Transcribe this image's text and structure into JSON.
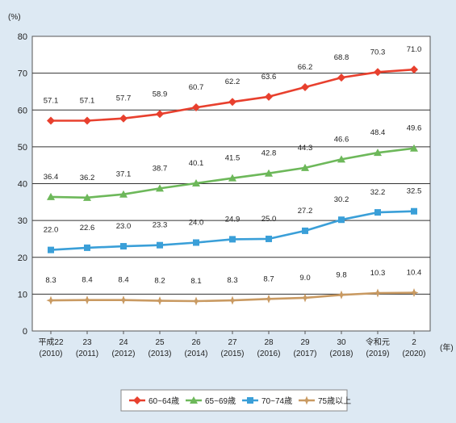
{
  "chart_data": {
    "type": "line",
    "y_unit_label": "(%)",
    "x_unit_label": "(年)",
    "ylim": [
      0,
      80
    ],
    "y_ticks": [
      0,
      10,
      20,
      30,
      40,
      50,
      60,
      70,
      80
    ],
    "grid": "horizontal",
    "legend_position": "bottom",
    "categories": [
      {
        "top": "平成22",
        "bottom": "(2010)"
      },
      {
        "top": "23",
        "bottom": "(2011)"
      },
      {
        "top": "24",
        "bottom": "(2012)"
      },
      {
        "top": "25",
        "bottom": "(2013)"
      },
      {
        "top": "26",
        "bottom": "(2014)"
      },
      {
        "top": "27",
        "bottom": "(2015)"
      },
      {
        "top": "28",
        "bottom": "(2016)"
      },
      {
        "top": "29",
        "bottom": "(2017)"
      },
      {
        "top": "30",
        "bottom": "(2018)"
      },
      {
        "top": "令和元",
        "bottom": "(2019)"
      },
      {
        "top": "2",
        "bottom": "(2020)"
      }
    ],
    "series": [
      {
        "name": "60~64歳",
        "color": "#e8402e",
        "marker": "diamond",
        "values": [
          57.1,
          57.1,
          57.7,
          58.9,
          60.7,
          62.2,
          63.6,
          66.2,
          68.8,
          70.3,
          71.0
        ]
      },
      {
        "name": "65~69歳",
        "color": "#6db85a",
        "marker": "triangle",
        "values": [
          36.4,
          36.2,
          37.1,
          38.7,
          40.1,
          41.5,
          42.8,
          44.3,
          46.6,
          48.4,
          49.6
        ]
      },
      {
        "name": "70~74歳",
        "color": "#3a9fd8",
        "marker": "square",
        "values": [
          22.0,
          22.6,
          23.0,
          23.3,
          24.0,
          24.9,
          25.0,
          27.2,
          30.2,
          32.2,
          32.5
        ]
      },
      {
        "name": "75歳以上",
        "color": "#c99a62",
        "marker": "star",
        "values": [
          8.3,
          8.4,
          8.4,
          8.2,
          8.1,
          8.3,
          8.7,
          9.0,
          9.8,
          10.3,
          10.4
        ]
      }
    ]
  }
}
